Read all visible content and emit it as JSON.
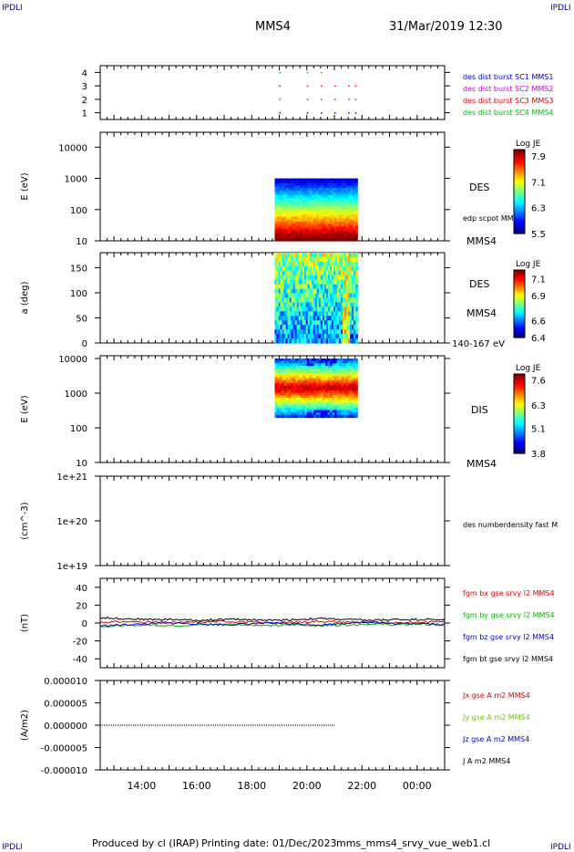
{
  "header": {
    "corner_tl": "IPDLI",
    "corner_tr": "IPDLI",
    "title": "MMS4",
    "datetime": "31/Mar/2019 12:30",
    "corner_bl": "IPDLI",
    "corner_br": "IPDLI"
  },
  "footer": {
    "produced": "Produced by cl (IRAP)",
    "printing": "Printing date: 01/Dec/2023",
    "file": "mms_mms4_srvy_vue_web1.cl"
  },
  "colors": {
    "mms1": "#0000cc",
    "mms2": "#cc00cc",
    "mms3": "#dd0000",
    "mms4": "#00bb00",
    "black": "#000000"
  },
  "chart_data": [
    {
      "id": "availability",
      "type": "scatter",
      "xlim": [
        "12:30",
        "01:00"
      ],
      "ylim": [
        0.5,
        4.5
      ],
      "yticks": [
        "1",
        "2",
        "3",
        "4"
      ],
      "legend": [
        {
          "label": "des dist burst SC1 MMS1",
          "color": "#0000cc"
        },
        {
          "label": "des dist burst SC2 MMS2",
          "color": "#cc00cc"
        },
        {
          "label": "des dist burst SC3 MMS3",
          "color": "#dd0000"
        },
        {
          "label": "des dist burst SC4 MMS4",
          "color": "#00bb00"
        }
      ],
      "series": [
        {
          "name": "MMS1",
          "y": 1,
          "x": [
            "19:00",
            "20:00",
            "20:30",
            "21:00",
            "21:30",
            "21:45"
          ]
        },
        {
          "name": "MMS2",
          "y": 2,
          "x": [
            "19:00",
            "20:00",
            "20:30",
            "21:00",
            "21:30",
            "21:45"
          ]
        },
        {
          "name": "MMS3",
          "y": 3,
          "x": [
            "19:00",
            "20:00",
            "20:30",
            "21:00",
            "21:30",
            "21:45"
          ]
        },
        {
          "name": "MMS4",
          "y": 4,
          "x": [
            "19:00",
            "20:00",
            "20:30"
          ]
        }
      ]
    },
    {
      "id": "des-energy",
      "type": "heatmap",
      "ylabel": "E (eV)",
      "yscale": "log",
      "ylim": [
        10,
        30000
      ],
      "yticks": [
        "10",
        "100",
        "1000",
        "10000"
      ],
      "x_range": [
        "18:50",
        "21:50"
      ],
      "label": "DES",
      "overlay_label": "edp scpot MMS4",
      "spacecraft": "MMS4",
      "colorbar": {
        "title": "Log JE",
        "ticks": [
          "7.9",
          "7.1",
          "6.3",
          "5.5"
        ],
        "range": [
          5.5,
          8.1
        ]
      }
    },
    {
      "id": "des-pitch",
      "type": "heatmap",
      "ylabel": "a (deg)",
      "ylim": [
        0,
        180
      ],
      "yticks": [
        "0",
        "50",
        "100",
        "150"
      ],
      "x_range": [
        "18:50",
        "21:50"
      ],
      "label": "DES",
      "spacecraft": "MMS4",
      "energy_range": "140-167 eV",
      "colorbar": {
        "title": "Log JE",
        "ticks": [
          "7.1",
          "6.9",
          "6.6",
          "6.4"
        ],
        "range": [
          6.4,
          7.2
        ]
      }
    },
    {
      "id": "dis-energy",
      "type": "heatmap",
      "ylabel": "E (eV)",
      "yscale": "log",
      "ylim": [
        10,
        12000
      ],
      "yticks": [
        "10",
        "100",
        "1000",
        "10000"
      ],
      "x_range": [
        "18:50",
        "21:50"
      ],
      "label": "DIS",
      "spacecraft": "MMS4",
      "colorbar": {
        "title": "Log JE",
        "ticks": [
          "7.6",
          "6.3",
          "5.1",
          "3.8"
        ],
        "range": [
          3.8,
          7.9
        ]
      }
    },
    {
      "id": "density",
      "type": "line",
      "ylabel": "(cm^-3)",
      "yscale": "log",
      "ylim": [
        1e+19,
        1e+21
      ],
      "yticks": [
        "1e+19",
        "1e+20",
        "1e+21"
      ],
      "legend": [
        {
          "label": "des numberdensity fast M",
          "color": "#000000"
        }
      ]
    },
    {
      "id": "fgm",
      "type": "line",
      "ylabel": "(nT)",
      "ylim": [
        -50,
        50
      ],
      "yticks": [
        "40",
        "20",
        "0",
        "-20",
        "-40"
      ],
      "legend": [
        {
          "label": "fgm bx gse srvy l2 MMS4",
          "color": "#dd0000"
        },
        {
          "label": "fgm by gse srvy l2 MMS4",
          "color": "#00bb00"
        },
        {
          "label": "fgm bz gse srvy l2 MMS4",
          "color": "#0000cc"
        },
        {
          "label": "fgm bt gse srvy l2 MMS4",
          "color": "#000000"
        }
      ],
      "series": [
        {
          "name": "bx",
          "values": [
            1,
            1.5,
            1,
            0.5,
            1,
            2,
            1,
            0,
            1,
            2,
            1,
            1,
            0,
            1,
            2
          ]
        },
        {
          "name": "by",
          "values": [
            -4,
            -3,
            -2,
            -3,
            -2,
            -1,
            -2,
            -3,
            -2,
            -3,
            -2,
            -1,
            -2,
            -1,
            -3
          ]
        },
        {
          "name": "bz",
          "values": [
            -3,
            -2,
            -1,
            0,
            -1,
            -2,
            -1,
            0,
            -1,
            -2,
            0,
            1,
            -1,
            0,
            -2
          ]
        },
        {
          "name": "bt",
          "values": [
            6,
            5,
            4,
            4,
            3,
            4,
            4,
            3,
            4,
            5,
            4,
            3,
            4,
            4,
            4
          ]
        }
      ],
      "x": [
        "12:30",
        "13:30",
        "14:30",
        "15:30",
        "16:30",
        "17:30",
        "18:30",
        "19:30",
        "20:30",
        "21:30",
        "22:30",
        "23:00",
        "23:30",
        "00:30",
        "01:00"
      ]
    },
    {
      "id": "current",
      "type": "line",
      "ylabel": "(A/m2)",
      "ylim": [
        -1e-05,
        1e-05
      ],
      "yticks": [
        "0.000010",
        "0.000005",
        "0.000000",
        "-0.000005",
        "-0.000010"
      ],
      "legend": [
        {
          "label": "Jx gse A m2 MMS4",
          "color": "#dd0000"
        },
        {
          "label": "Jy gse A m2 MMS4",
          "color": "#66cc00"
        },
        {
          "label": "Jz gse A m2 MMS4",
          "color": "#0000cc"
        },
        {
          "label": "J A m2 MMS4",
          "color": "#000000"
        }
      ],
      "series": [
        {
          "name": "J",
          "value": 0
        }
      ]
    }
  ],
  "xaxis": {
    "start": "12:30",
    "end": "01:00",
    "ticks": [
      "14:00",
      "16:00",
      "18:00",
      "20:00",
      "22:00",
      "00:00"
    ],
    "tick_hours": [
      14,
      16,
      18,
      20,
      22,
      24
    ]
  }
}
